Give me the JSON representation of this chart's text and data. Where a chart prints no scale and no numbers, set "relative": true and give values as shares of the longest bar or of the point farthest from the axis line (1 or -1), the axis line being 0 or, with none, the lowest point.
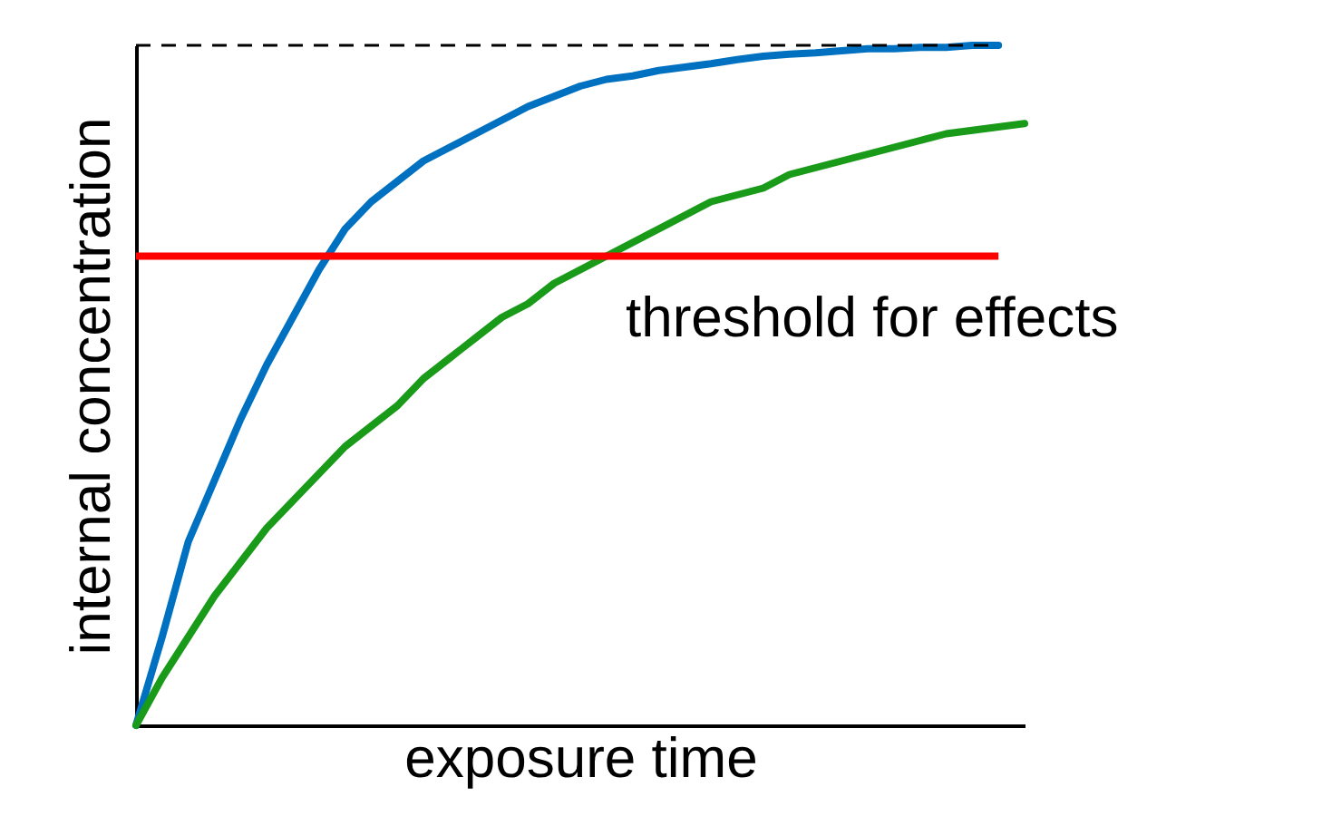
{
  "chart_data": {
    "type": "line",
    "relative": true,
    "xlabel": "exposure time",
    "ylabel": "internal concentration",
    "tick_labels": false,
    "grid": false,
    "legend": false,
    "line_style": "solid",
    "marker": "none",
    "categories": [
      null,
      null,
      null,
      null,
      null,
      null,
      null,
      null,
      null,
      null,
      null,
      null,
      null,
      null,
      null,
      null,
      null,
      null,
      null,
      null,
      null,
      null,
      null,
      null,
      null,
      null,
      null,
      null,
      null,
      null,
      null,
      null,
      null,
      null,
      null
    ],
    "series": [
      {
        "color": "#0070c0",
        "values": [
          0,
          0.13,
          0.27,
          0.36,
          0.45,
          0.53,
          0.6,
          0.67,
          0.73,
          0.77,
          0.8,
          0.83,
          0.85,
          0.87,
          0.89,
          0.91,
          0.925,
          0.94,
          0.95,
          0.955,
          0.963,
          0.968,
          0.973,
          0.979,
          0.984,
          0.987,
          0.989,
          0.992,
          0.995,
          0.995,
          0.997,
          0.997,
          1,
          1,
          null
        ]
      },
      {
        "color": "#199a19",
        "values": [
          0,
          0.07,
          0.13,
          0.19,
          0.24,
          0.29,
          0.33,
          0.37,
          0.41,
          0.44,
          0.47,
          0.51,
          0.54,
          0.57,
          0.6,
          0.62,
          0.65,
          0.67,
          0.69,
          0.71,
          0.73,
          0.75,
          0.77,
          0.78,
          0.79,
          0.81,
          0.82,
          0.83,
          0.84,
          0.85,
          0.86,
          0.87,
          0.875,
          0.88,
          0.885
        ]
      }
    ],
    "ref_lines": [
      {
        "axis": "y",
        "value": 1,
        "color": "#000000",
        "line_style": "dashed"
      },
      {
        "axis": "y",
        "value": 0.69,
        "color": "#ff0000",
        "line_style": "solid",
        "label": "threshold for effects"
      }
    ]
  }
}
